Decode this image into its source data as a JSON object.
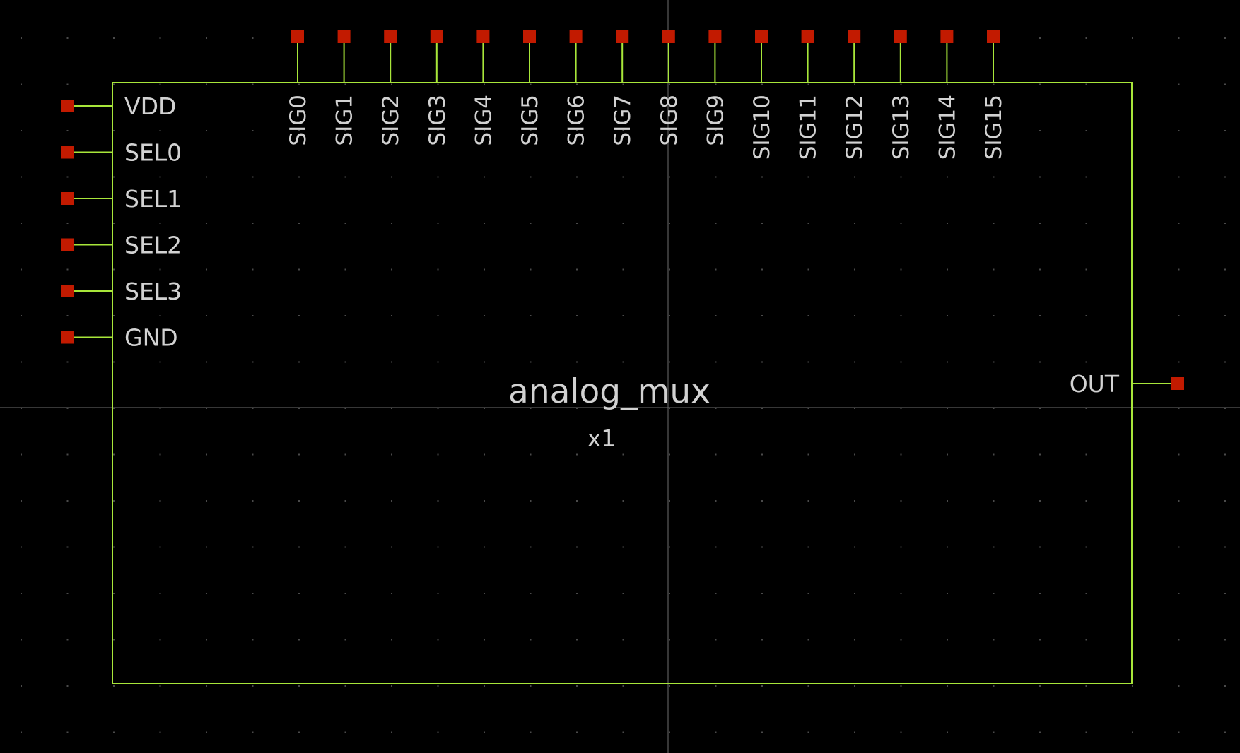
{
  "canvas": {
    "background": "#000000",
    "grid_dot_color": "#4a4a4a",
    "origin_axis_color": "#6e6e6e"
  },
  "colors": {
    "symbol_outline": "#a8e63a",
    "pin_wire": "#a8e63a",
    "pin_square": "#c21a00",
    "text": "#d2d2d2"
  },
  "symbol": {
    "name": "analog_mux",
    "instance": "x1"
  },
  "pins": {
    "left": [
      "VDD",
      "SEL0",
      "SEL1",
      "SEL2",
      "SEL3",
      "GND"
    ],
    "top": [
      "SIG0",
      "SIG1",
      "SIG2",
      "SIG3",
      "SIG4",
      "SIG5",
      "SIG6",
      "SIG7",
      "SIG8",
      "SIG9",
      "SIG10",
      "SIG11",
      "SIG12",
      "SIG13",
      "SIG14",
      "SIG15"
    ],
    "right": [
      "OUT"
    ]
  }
}
